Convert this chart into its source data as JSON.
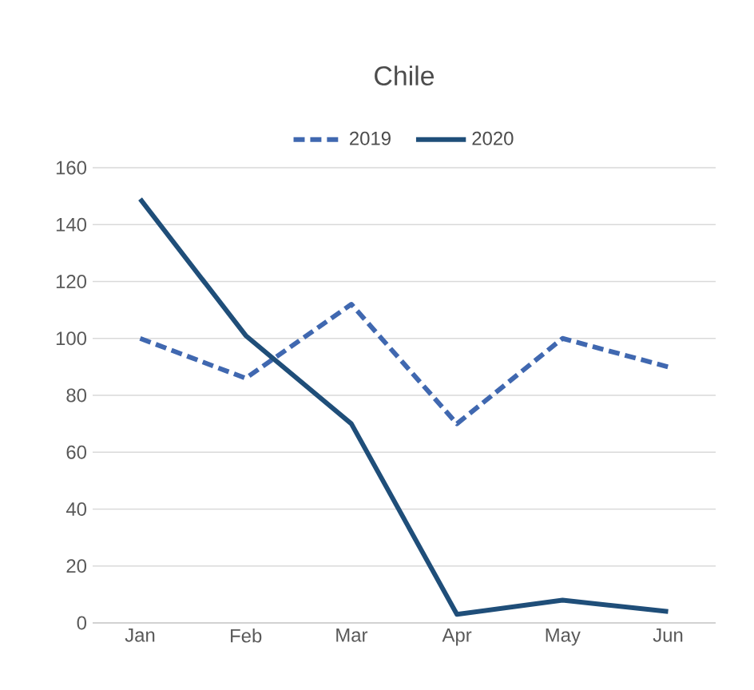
{
  "chart_data": {
    "type": "line",
    "title": "Chile",
    "categories": [
      "Jan",
      "Feb",
      "Mar",
      "Apr",
      "May",
      "Jun"
    ],
    "series": [
      {
        "name": "2019",
        "color": "#4068b0",
        "line_style": "dashed",
        "values": [
          100,
          86,
          112,
          70,
          100,
          90
        ]
      },
      {
        "name": "2020",
        "color": "#1f4e79",
        "line_style": "solid",
        "values": [
          149,
          101,
          70,
          3,
          8,
          4
        ]
      }
    ],
    "ylim": [
      0,
      160
    ],
    "yticks": [
      0,
      20,
      40,
      60,
      80,
      100,
      120,
      140,
      160
    ],
    "grid": "y",
    "legend": "top",
    "marker": "none"
  }
}
